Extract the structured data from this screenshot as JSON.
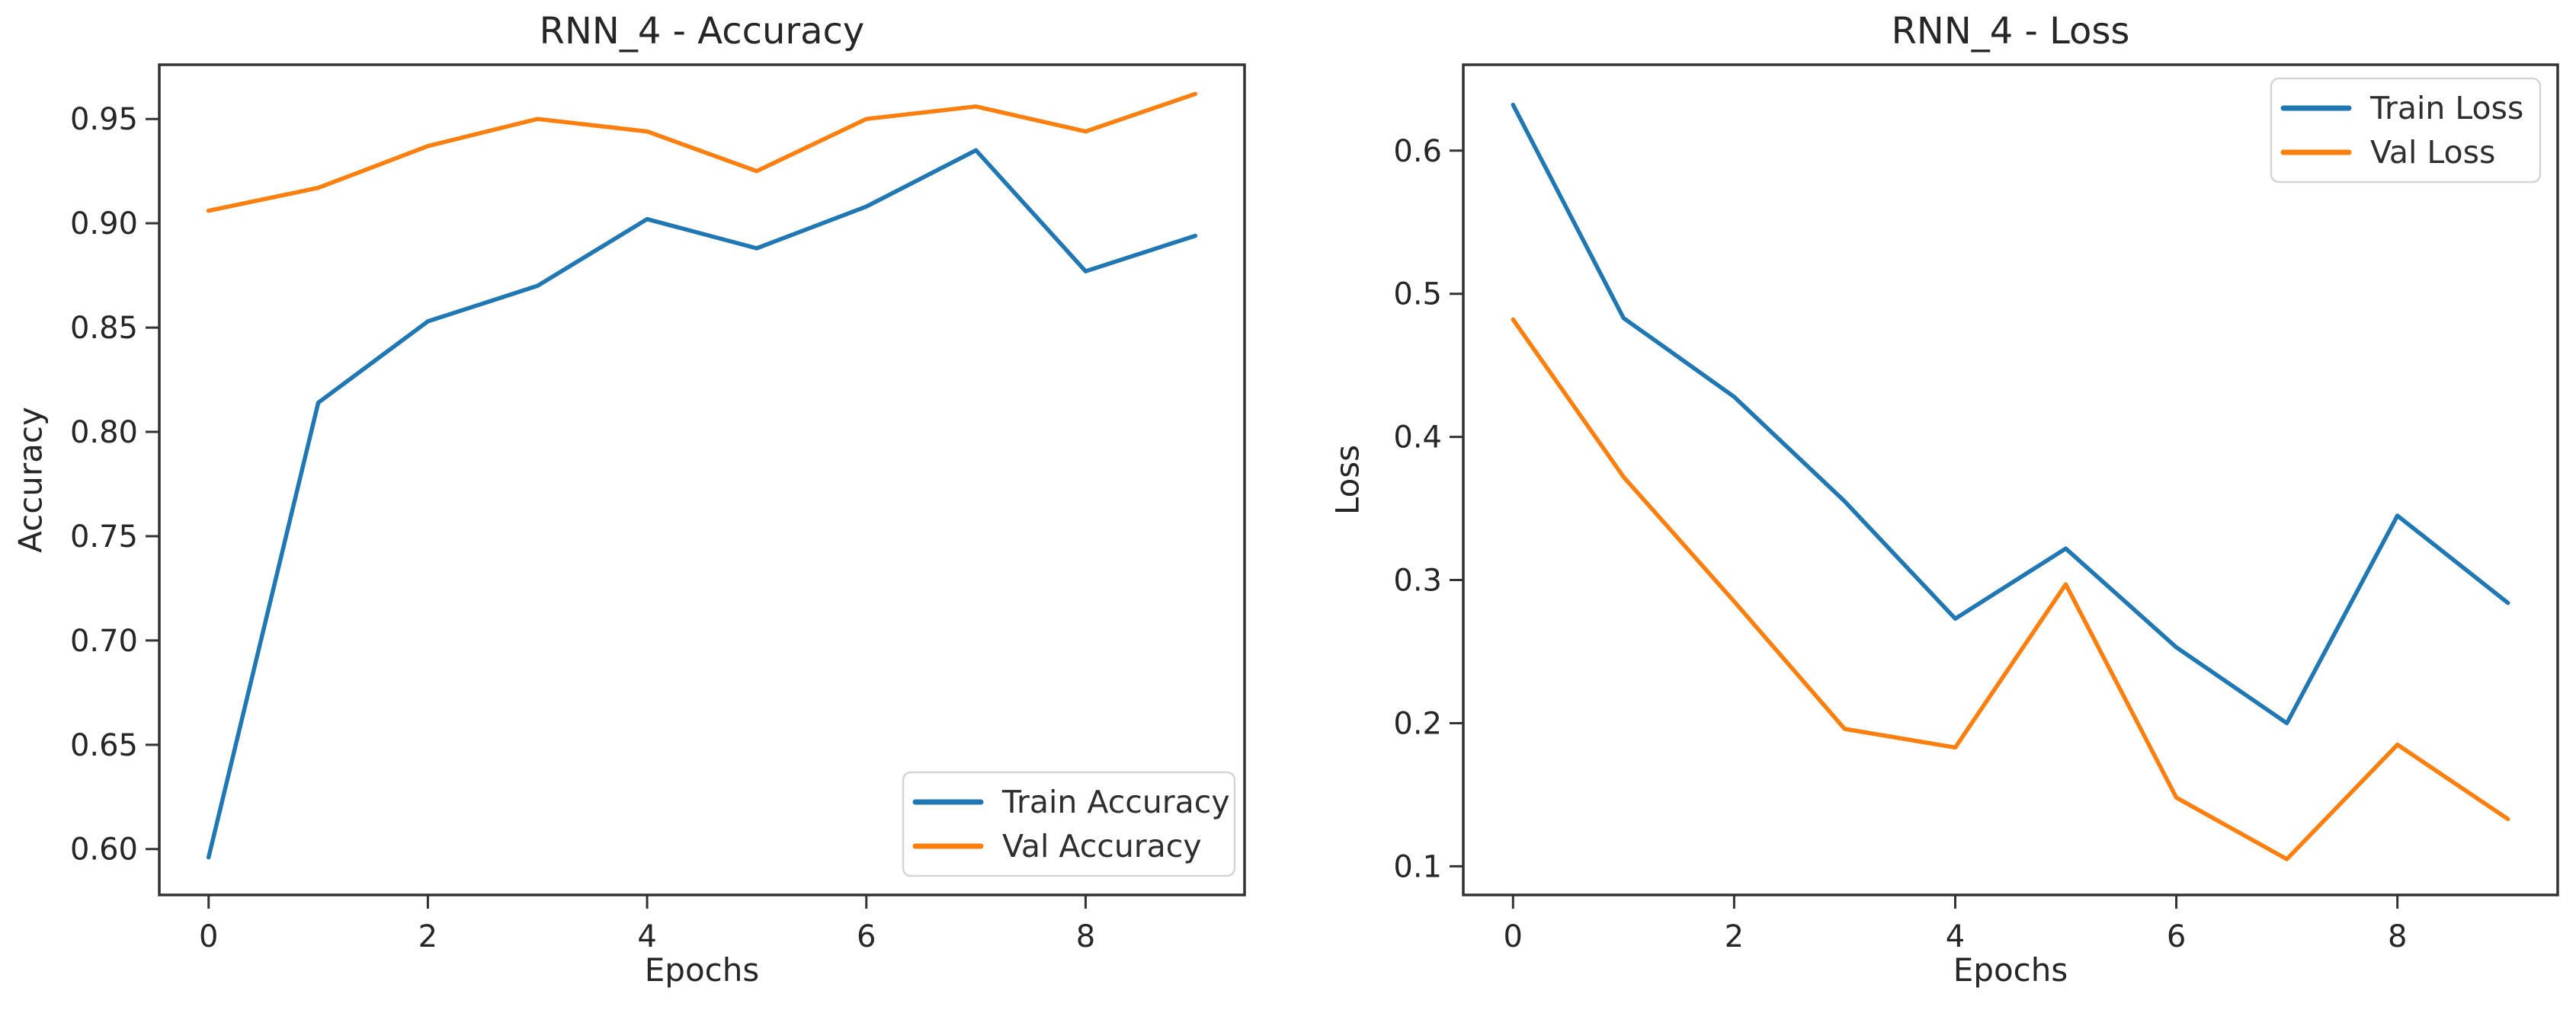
{
  "page": {
    "background_color": "#ffffff",
    "text_color": "#262626",
    "axis_color": "#333333",
    "legend_border_color": "#d5d5d5"
  },
  "chart_data": [
    {
      "type": "line",
      "title": "RNN_4 - Accuracy",
      "xlabel": "Epochs",
      "ylabel": "Accuracy",
      "x": [
        0,
        1,
        2,
        3,
        4,
        5,
        6,
        7,
        8,
        9
      ],
      "series": [
        {
          "name": "Train Accuracy",
          "color": "#1f77b4",
          "values": [
            0.596,
            0.814,
            0.853,
            0.87,
            0.902,
            0.888,
            0.908,
            0.935,
            0.877,
            0.894
          ]
        },
        {
          "name": "Val Accuracy",
          "color": "#ff7f0e",
          "values": [
            0.906,
            0.917,
            0.937,
            0.95,
            0.944,
            0.925,
            0.95,
            0.956,
            0.944,
            0.962
          ]
        }
      ],
      "xticks": [
        0,
        2,
        4,
        6,
        8
      ],
      "xtick_labels": [
        "0",
        "2",
        "4",
        "6",
        "8"
      ],
      "yticks": [
        0.6,
        0.65,
        0.7,
        0.75,
        0.8,
        0.85,
        0.9,
        0.95
      ],
      "ytick_labels": [
        "0.60",
        "0.65",
        "0.70",
        "0.75",
        "0.80",
        "0.85",
        "0.90",
        "0.95"
      ],
      "xlim": [
        -0.45,
        9.45
      ],
      "ylim": [
        0.578,
        0.976
      ],
      "grid": false,
      "legend": {
        "position": "lower-right",
        "entries": [
          "Train Accuracy",
          "Val Accuracy"
        ]
      }
    },
    {
      "type": "line",
      "title": "RNN_4 - Loss",
      "xlabel": "Epochs",
      "ylabel": "Loss",
      "x": [
        0,
        1,
        2,
        3,
        4,
        5,
        6,
        7,
        8,
        9
      ],
      "series": [
        {
          "name": "Train Loss",
          "color": "#1f77b4",
          "values": [
            0.632,
            0.483,
            0.428,
            0.355,
            0.273,
            0.322,
            0.253,
            0.2,
            0.345,
            0.284
          ]
        },
        {
          "name": "Val Loss",
          "color": "#ff7f0e",
          "values": [
            0.482,
            0.372,
            0.285,
            0.196,
            0.183,
            0.297,
            0.148,
            0.105,
            0.185,
            0.133
          ]
        }
      ],
      "xticks": [
        0,
        2,
        4,
        6,
        8
      ],
      "xtick_labels": [
        "0",
        "2",
        "4",
        "6",
        "8"
      ],
      "yticks": [
        0.1,
        0.2,
        0.3,
        0.4,
        0.5,
        0.6
      ],
      "ytick_labels": [
        "0.1",
        "0.2",
        "0.3",
        "0.4",
        "0.5",
        "0.6"
      ],
      "xlim": [
        -0.45,
        9.45
      ],
      "ylim": [
        0.08,
        0.66
      ],
      "grid": false,
      "legend": {
        "position": "upper-right",
        "entries": [
          "Train Loss",
          "Val Loss"
        ]
      }
    }
  ]
}
